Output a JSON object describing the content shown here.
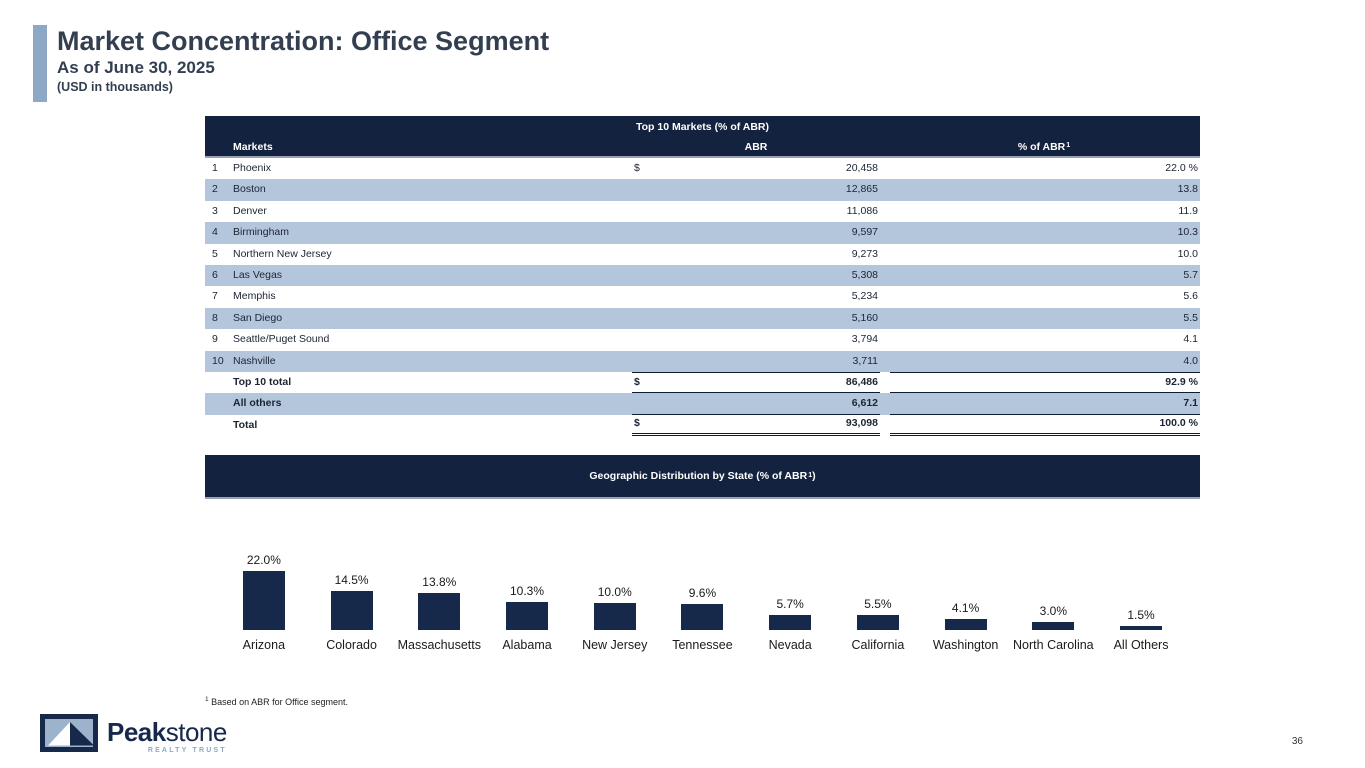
{
  "slide": {
    "title": "Market Concentration: Office Segment",
    "subtitle": "As of June 30, 2025",
    "units_note": "(USD in thousands)",
    "page_number": "36",
    "footnote": {
      "marker": "1",
      "text": " Based on ABR for Office segment."
    }
  },
  "table": {
    "title": "Top 10 Markets (% of ABR)",
    "columns": {
      "markets": "Markets",
      "abr": "ABR",
      "pct_label": "% of ABR",
      "pct_sup": "1"
    },
    "rows": [
      {
        "rank": "1",
        "market": "Phoenix",
        "dollar": "$",
        "abr": "20,458",
        "pct": "22.0 %"
      },
      {
        "rank": "2",
        "market": "Boston",
        "dollar": "",
        "abr": "12,865",
        "pct": "13.8"
      },
      {
        "rank": "3",
        "market": "Denver",
        "dollar": "",
        "abr": "11,086",
        "pct": "11.9"
      },
      {
        "rank": "4",
        "market": "Birmingham",
        "dollar": "",
        "abr": "9,597",
        "pct": "10.3"
      },
      {
        "rank": "5",
        "market": "Northern New Jersey",
        "dollar": "",
        "abr": "9,273",
        "pct": "10.0"
      },
      {
        "rank": "6",
        "market": "Las Vegas",
        "dollar": "",
        "abr": "5,308",
        "pct": "5.7"
      },
      {
        "rank": "7",
        "market": "Memphis",
        "dollar": "",
        "abr": "5,234",
        "pct": "5.6"
      },
      {
        "rank": "8",
        "market": "San Diego",
        "dollar": "",
        "abr": "5,160",
        "pct": "5.5"
      },
      {
        "rank": "9",
        "market": "Seattle/Puget Sound",
        "dollar": "",
        "abr": "3,794",
        "pct": "4.1"
      },
      {
        "rank": "10",
        "market": "Nashville",
        "dollar": "",
        "abr": "3,711",
        "pct": "4.0"
      }
    ],
    "totals": [
      {
        "label": "Top 10 total",
        "dollar": "$",
        "abr": "86,486",
        "pct": "92.9 %"
      },
      {
        "label": "All others",
        "dollar": "",
        "abr": "6,612",
        "pct": "7.1"
      },
      {
        "label": "Total",
        "dollar": "$",
        "abr": "93,098",
        "pct": "100.0 %"
      }
    ]
  },
  "geo_header": {
    "prefix": "Geographic Distribution by State (% of ABR",
    "sup": "1",
    "suffix": ")"
  },
  "chart_data": {
    "type": "bar",
    "title": "Geographic Distribution by State (% of ABR¹)",
    "categories": [
      "Arizona",
      "Colorado",
      "Massachusetts",
      "Alabama",
      "New Jersey",
      "Tennessee",
      "Nevada",
      "California",
      "Washington",
      "North Carolina",
      "All Others"
    ],
    "values": [
      22.0,
      14.5,
      13.8,
      10.3,
      10.0,
      9.6,
      5.7,
      5.5,
      4.1,
      3.0,
      1.5
    ],
    "labels": [
      "22.0%",
      "14.5%",
      "13.8%",
      "10.3%",
      "10.0%",
      "9.6%",
      "5.7%",
      "5.5%",
      "4.1%",
      "3.0%",
      "1.5%"
    ],
    "xlabel": "",
    "ylabel": "",
    "ylim": [
      0,
      24
    ],
    "grid": false,
    "legend": "none",
    "bar_color": "#16294a"
  },
  "logo": {
    "brand_bold": "Peak",
    "brand_light": "stone",
    "tagline": "REALTY TRUST"
  },
  "colors": {
    "header_navy": "#13223f",
    "row_blue": "#b4c6db",
    "accent_steel_blue": "#8da8c5",
    "title_text": "#333f50",
    "bar_navy": "#16294a"
  }
}
